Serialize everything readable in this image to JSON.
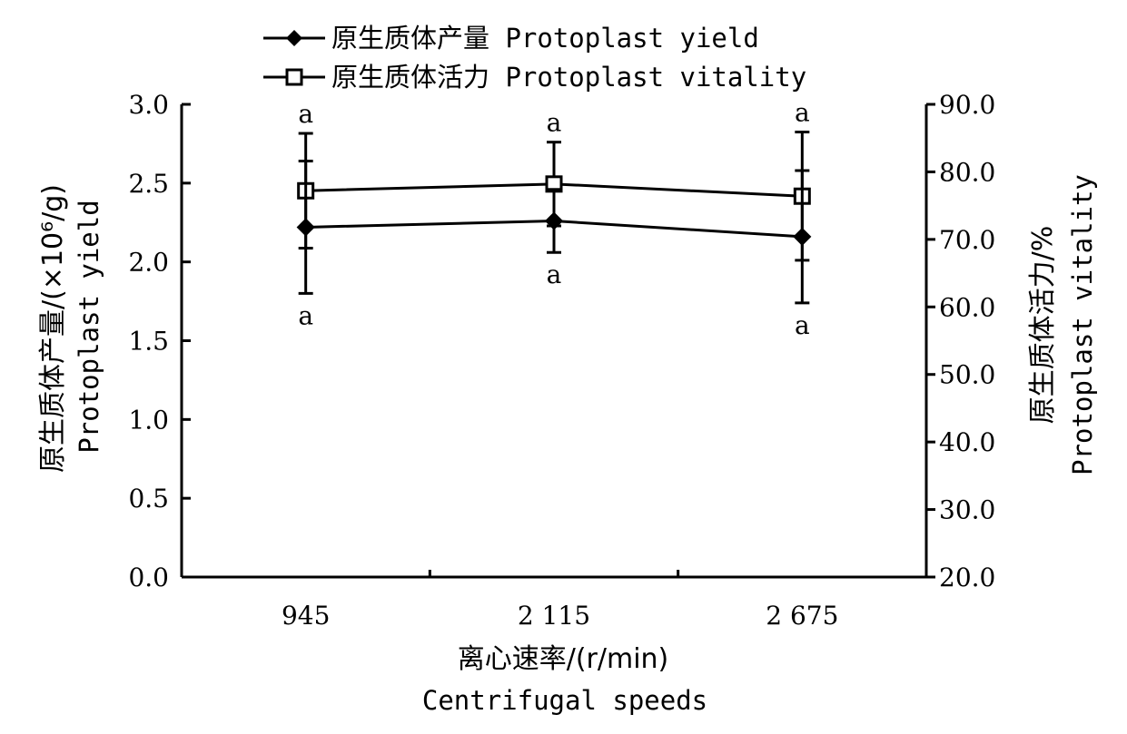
{
  "chart_data": {
    "type": "line",
    "categories": [
      "945",
      "2 115",
      "2 675"
    ],
    "series": [
      {
        "name": "原生质体产量 Protoplast yield",
        "axis": "left",
        "marker": "filled-diamond",
        "values": [
          2.22,
          2.26,
          2.16
        ],
        "error": [
          0.42,
          0.2,
          0.42
        ],
        "significance": [
          "a",
          "a",
          "a"
        ]
      },
      {
        "name": "原生质体活力 Protoplast vitality",
        "axis": "right",
        "marker": "open-square",
        "values": [
          77.2,
          78.2,
          76.4
        ],
        "error": [
          8.5,
          6.2,
          9.5
        ],
        "significance": [
          "a",
          "a",
          "a"
        ]
      }
    ],
    "y_left": {
      "label_cn": "原生质体产量/(×10⁶/g)",
      "label_en": "Protoplast yield",
      "ylim": [
        0,
        3.0
      ],
      "ticks": [
        "0.0",
        "0.5",
        "1.0",
        "1.5",
        "2.0",
        "2.5",
        "3.0"
      ]
    },
    "y_right": {
      "label_cn": "原生质体活力/%",
      "label_en": "Protoplast vitality",
      "ylim": [
        20,
        90
      ],
      "ticks": [
        "20.0",
        "30.0",
        "40.0",
        "50.0",
        "60.0",
        "70.0",
        "80.0",
        "90.0"
      ]
    },
    "x": {
      "label_cn": "离心速率/(r/min)",
      "label_en": "Centrifugal speeds"
    },
    "legend_position": "top",
    "grid": false
  }
}
